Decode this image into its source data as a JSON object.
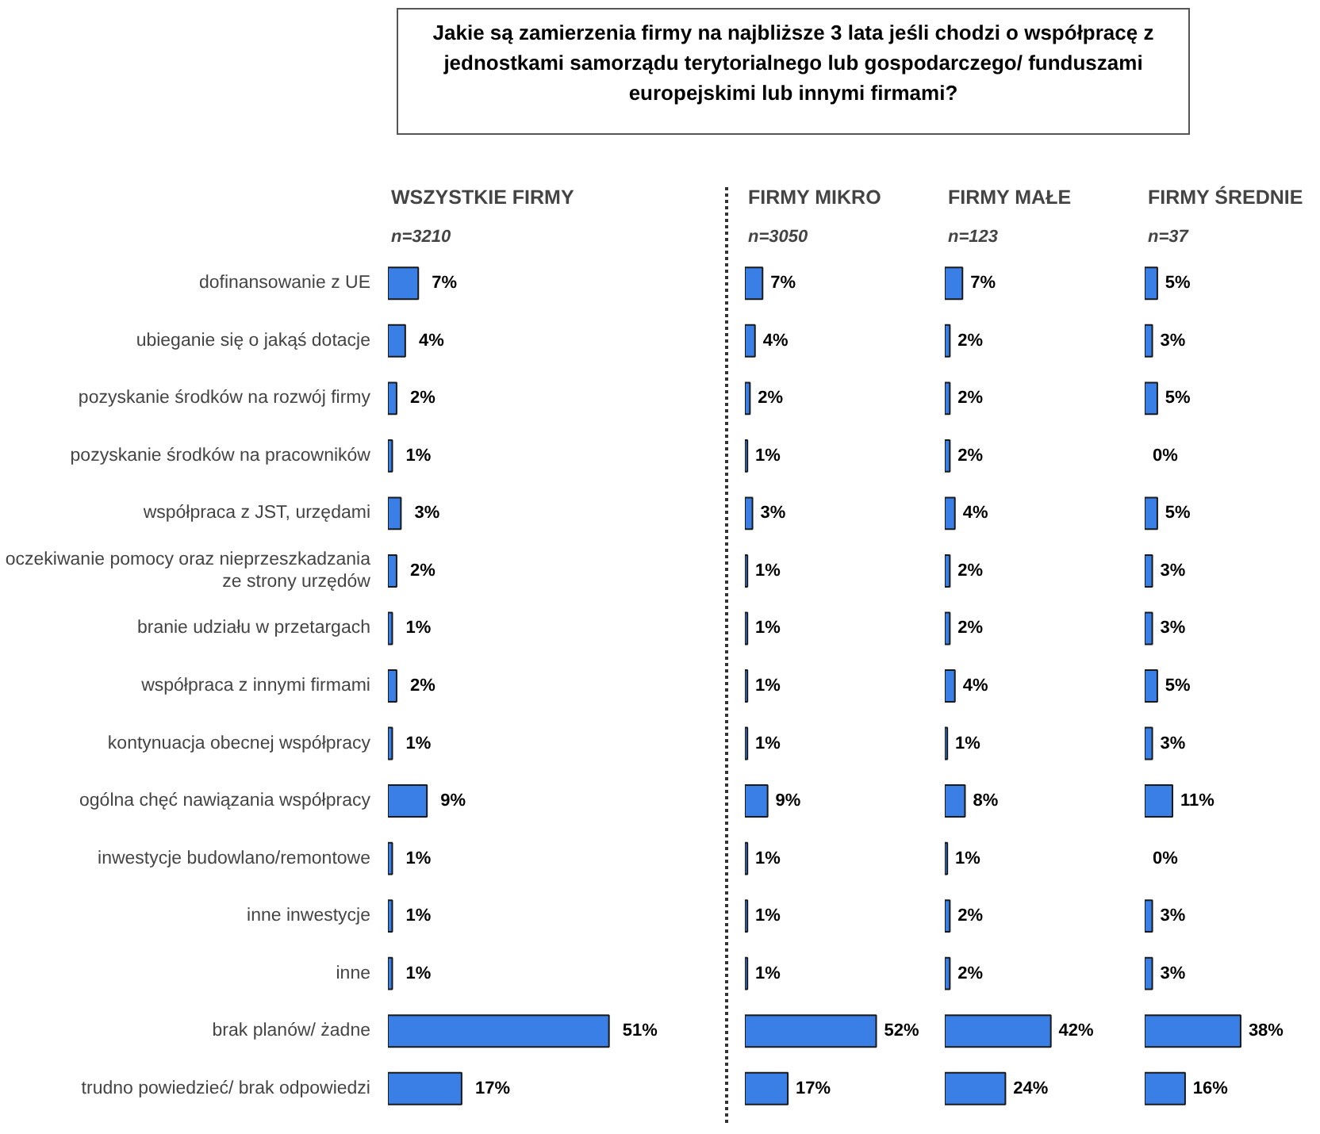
{
  "chart_data": [
    {
      "type": "bar",
      "orientation": "horizontal",
      "title": "WSZYSTKIE FIRMY",
      "subtitle": "n=3210",
      "annotations": [
        "Jakie są zamierzenia firmy na najbliższe 3 lata jeśli chodzi o współpracę z jednostkami samorządu terytorialnego lub gospodarczego/ funduszami europejskimi lub innymi firmami?"
      ],
      "categories": [
        "dofinansowanie z UE",
        "ubieganie się o jakąś dotacje",
        "pozyskanie środków na rozwój firmy",
        "pozyskanie środków na pracowników",
        "współpraca z JST, urzędami",
        "oczekiwanie pomocy oraz nieprzeszkadzania ze strony urzędów",
        "branie udziału w przetargach",
        "współpraca z innymi firmami",
        "kontynuacja obecnej współpracy",
        "ogólna chęć nawiązania współpracy",
        "inwestycje budowlano/remontowe",
        "inne inwestycje",
        "inne",
        "brak planów/ żadne",
        "trudno powiedzieć/ brak odpowiedzi"
      ],
      "values": [
        7,
        4,
        2,
        1,
        3,
        2,
        1,
        2,
        1,
        9,
        1,
        1,
        1,
        51,
        17
      ],
      "color": "#3a7fe6",
      "value_labels": [
        "7%",
        "4%",
        "2%",
        "1%",
        "3%",
        "2%",
        "1%",
        "2%",
        "1%",
        "9%",
        "1%",
        "1%",
        "1%",
        "51%",
        "17%"
      ],
      "tick_labels": "y"
    },
    {
      "type": "bar",
      "orientation": "horizontal",
      "title": "FIRMY MIKRO",
      "subtitle": "n=3050",
      "categories": [
        "dofinansowanie z UE",
        "ubieganie się o jakąś dotacje",
        "pozyskanie środków na rozwój firmy",
        "pozyskanie środków na pracowników",
        "współpraca z JST, urzędami",
        "oczekiwanie pomocy oraz nieprzeszkadzania ze strony urzędów",
        "branie udziału w przetargach",
        "współpraca z innymi firmami",
        "kontynuacja obecnej współpracy",
        "ogólna chęć nawiązania współpracy",
        "inwestycje budowlano/remontowe",
        "inne inwestycje",
        "inne",
        "brak planów/ żadne",
        "trudno powiedzieć/ brak odpowiedzi"
      ],
      "values": [
        7,
        4,
        2,
        1,
        3,
        1,
        1,
        1,
        1,
        9,
        1,
        1,
        1,
        52,
        17
      ],
      "color": "#3a7fe6",
      "value_labels": [
        "7%",
        "4%",
        "2%",
        "1%",
        "3%",
        "1%",
        "1%",
        "1%",
        "1%",
        "9%",
        "1%",
        "1%",
        "1%",
        "52%",
        "17%"
      ],
      "tick_labels": false
    },
    {
      "type": "bar",
      "orientation": "horizontal",
      "title": "FIRMY MAŁE",
      "subtitle": "n=123",
      "categories": [
        "dofinansowanie z UE",
        "ubieganie się o jakąś dotacje",
        "pozyskanie środków na rozwój firmy",
        "pozyskanie środków na pracowników",
        "współpraca z JST, urzędami",
        "oczekiwanie pomocy oraz nieprzeszkadzania ze strony urzędów",
        "branie udziału w przetargach",
        "współpraca z innymi firmami",
        "kontynuacja obecnej współpracy",
        "ogólna chęć nawiązania współpracy",
        "inwestycje budowlano/remontowe",
        "inne inwestycje",
        "inne",
        "brak planów/ żadne",
        "trudno powiedzieć/ brak odpowiedzi"
      ],
      "values": [
        7,
        2,
        2,
        2,
        4,
        2,
        2,
        4,
        1,
        8,
        1,
        2,
        2,
        42,
        24
      ],
      "color": "#3a7fe6",
      "value_labels": [
        "7%",
        "2%",
        "2%",
        "2%",
        "4%",
        "2%",
        "2%",
        "4%",
        "1%",
        "8%",
        "1%",
        "2%",
        "2%",
        "42%",
        "24%"
      ],
      "tick_labels": false
    },
    {
      "type": "bar",
      "orientation": "horizontal",
      "title": "FIRMY ŚREDNIE",
      "subtitle": "n=37",
      "categories": [
        "dofinansowanie z UE",
        "ubieganie się o jakąś dotacje",
        "pozyskanie środków na rozwój firmy",
        "pozyskanie środków na pracowników",
        "współpraca z JST, urzędami",
        "oczekiwanie pomocy oraz nieprzeszkadzania ze strony urzędów",
        "branie udziału w przetargach",
        "współpraca z innymi firmami",
        "kontynuacja obecnej współpracy",
        "ogólna chęć nawiązania współpracy",
        "inwestycje budowlano/remontowe",
        "inne inwestycje",
        "inne",
        "brak planów/ żadne",
        "trudno powiedzieć/ brak odpowiedzi"
      ],
      "values": [
        5,
        3,
        5,
        0,
        5,
        3,
        3,
        5,
        3,
        11,
        0,
        3,
        3,
        38,
        16
      ],
      "color": "#3a7fe6",
      "value_labels": [
        "5%",
        "3%",
        "5%",
        "0%",
        "5%",
        "3%",
        "3%",
        "5%",
        "3%",
        "11%",
        "0%",
        "3%",
        "3%",
        "38%",
        "16%"
      ],
      "tick_labels": false
    }
  ]
}
